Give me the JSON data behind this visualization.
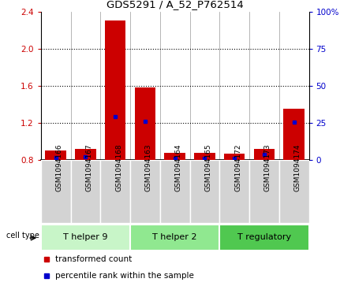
{
  "title": "GDS5291 / A_52_P762514",
  "samples": [
    "GSM1094166",
    "GSM1094167",
    "GSM1094168",
    "GSM1094163",
    "GSM1094164",
    "GSM1094165",
    "GSM1094172",
    "GSM1094173",
    "GSM1094174"
  ],
  "red_values": [
    0.9,
    0.92,
    2.3,
    1.58,
    0.88,
    0.88,
    0.87,
    0.92,
    1.35
  ],
  "blue_values": [
    0.83,
    0.84,
    1.27,
    1.22,
    0.82,
    0.82,
    0.82,
    0.86,
    1.21
  ],
  "ylim": [
    0.8,
    2.4
  ],
  "yticks_left": [
    0.8,
    1.2,
    1.6,
    2.0,
    2.4
  ],
  "yticks_right": [
    0,
    25,
    50,
    75,
    100
  ],
  "cell_types": [
    {
      "label": "T helper 9",
      "start": 0,
      "end": 3,
      "color": "#c8f5c8"
    },
    {
      "label": "T helper 2",
      "start": 3,
      "end": 6,
      "color": "#90e890"
    },
    {
      "label": "T regulatory",
      "start": 6,
      "end": 9,
      "color": "#50c850"
    }
  ],
  "red_color": "#cc0000",
  "blue_color": "#0000cc",
  "sample_box_color": "#d3d3d3",
  "legend_red": "transformed count",
  "legend_blue": "percentile rank within the sample",
  "cell_type_label": "cell type",
  "grid_dotted_ticks": [
    1.2,
    1.6,
    2.0
  ],
  "bar_width": 0.7
}
